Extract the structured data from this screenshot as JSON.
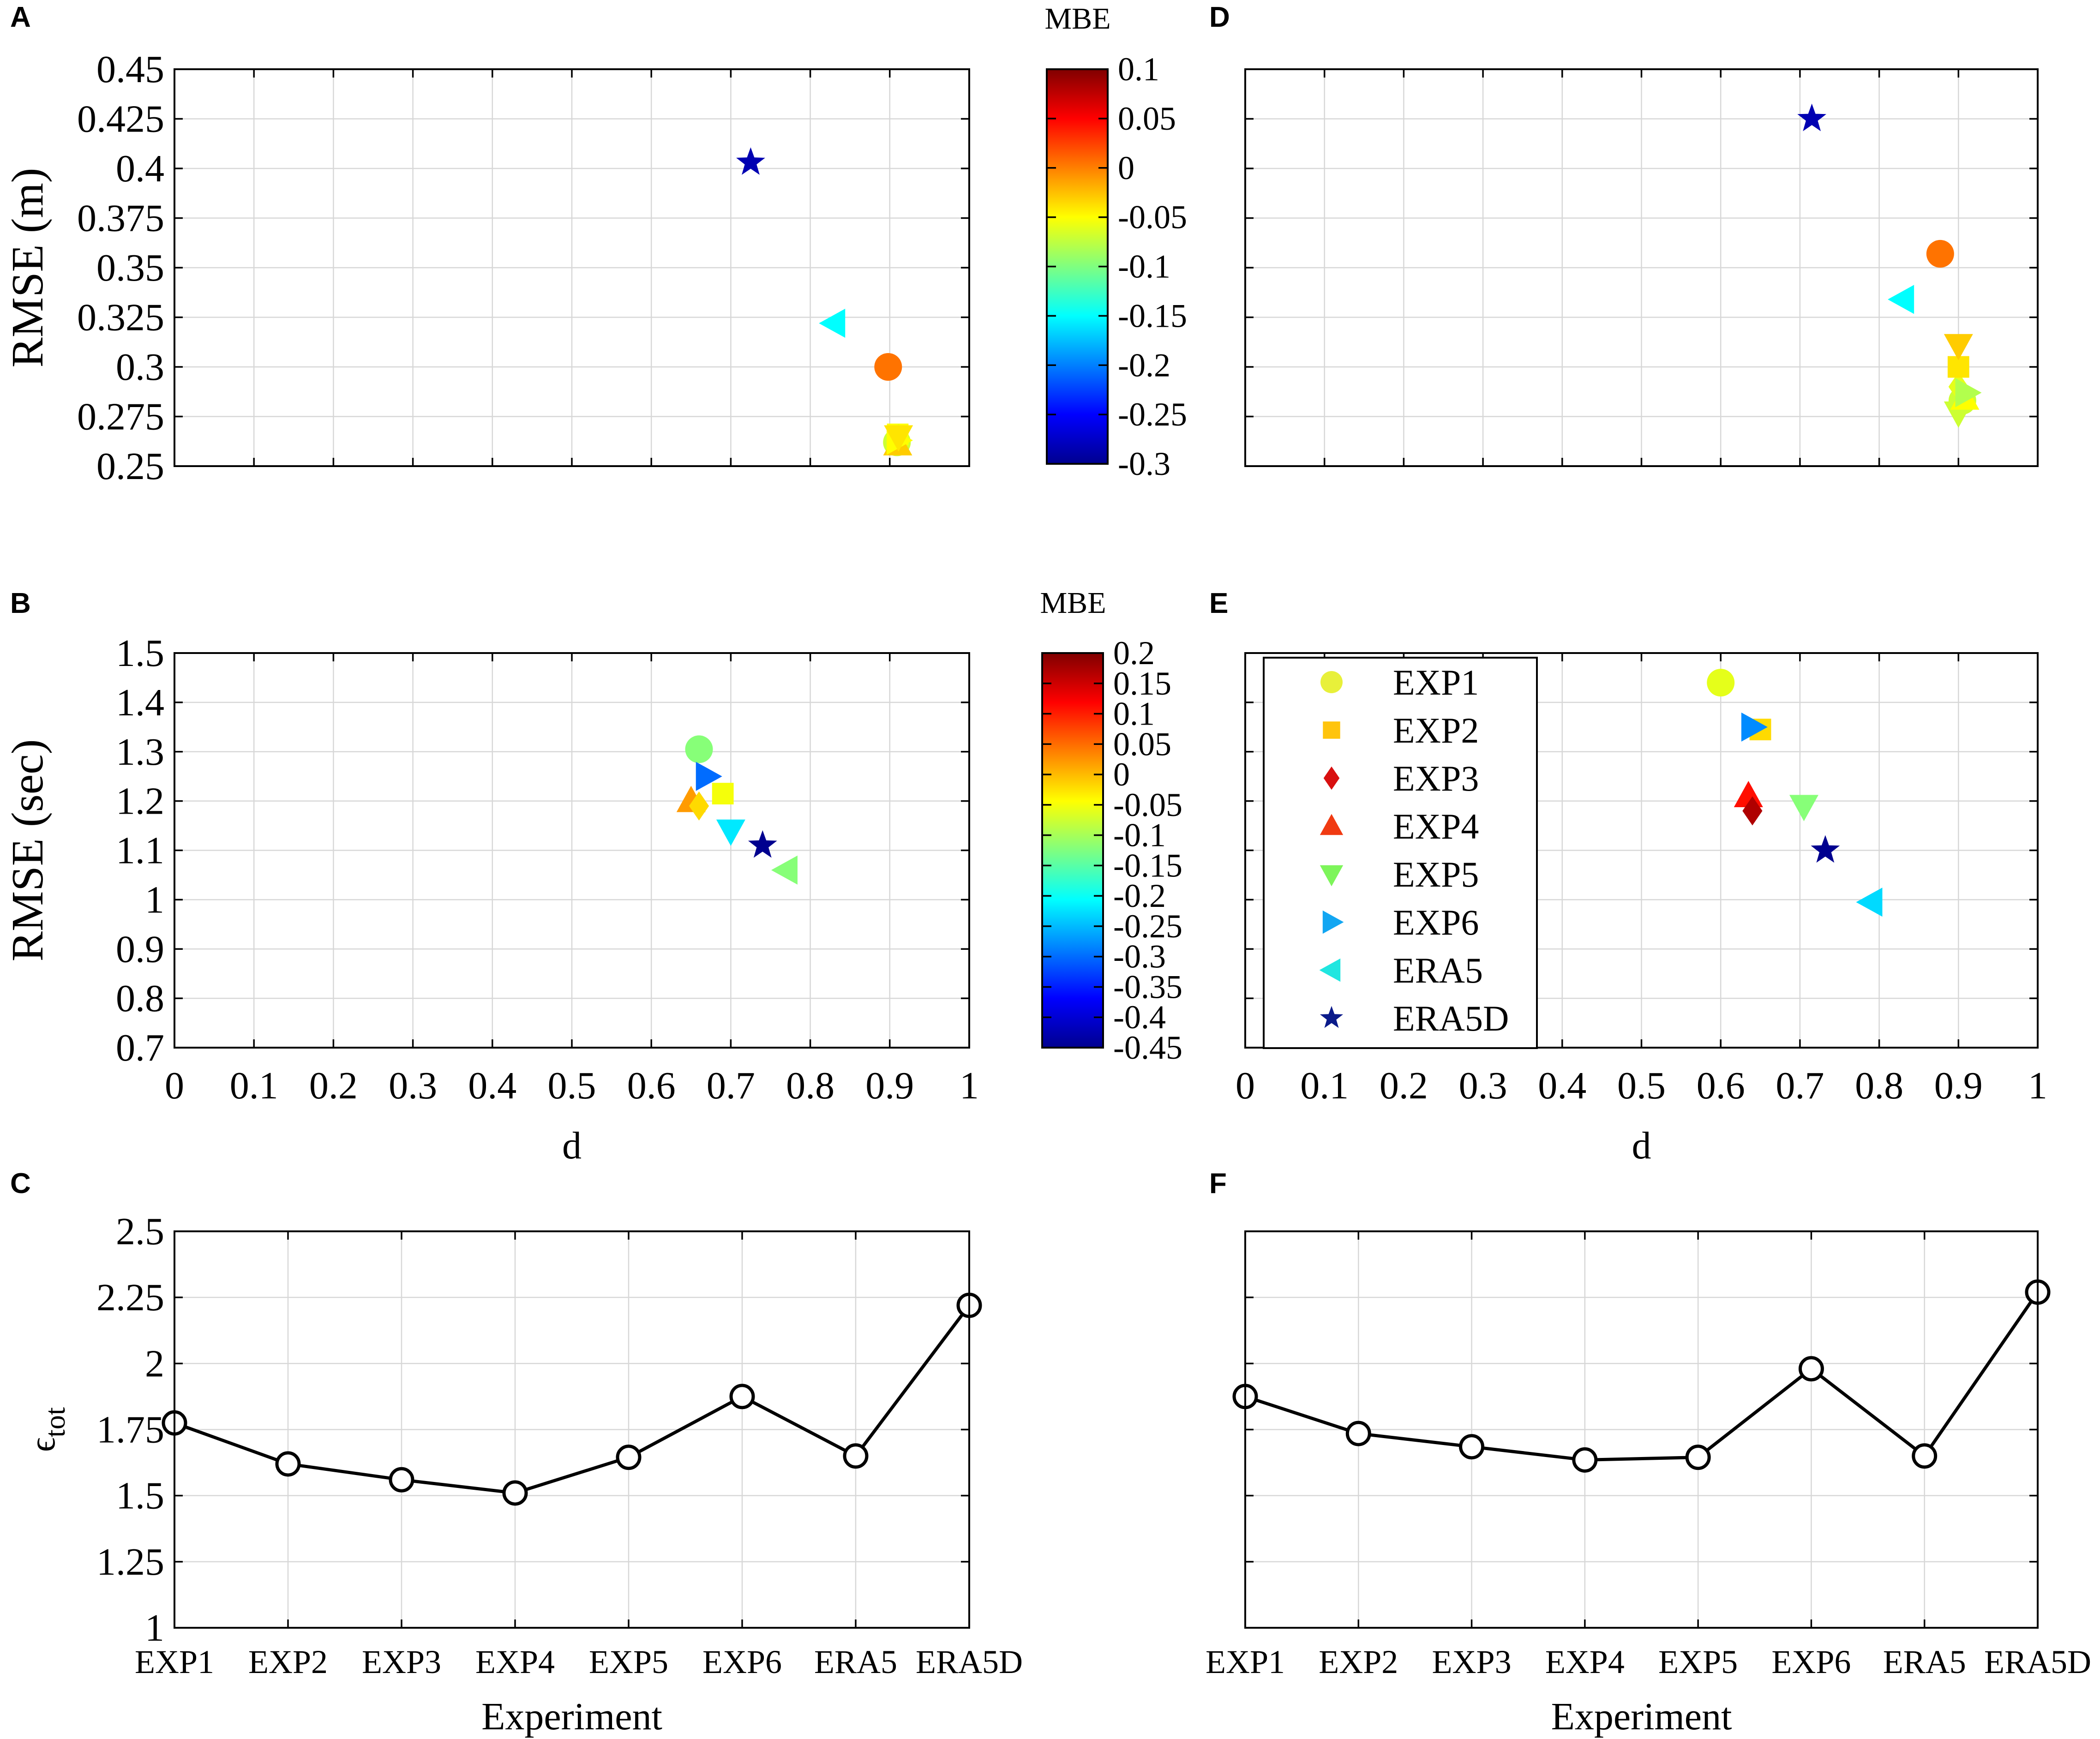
{
  "colors": {
    "axis": "#000000",
    "grid": "#d7d7d7",
    "background": "#ffffff"
  },
  "legend": {
    "entries": [
      {
        "label": "EXP1",
        "marker": "circle"
      },
      {
        "label": "EXP2",
        "marker": "square"
      },
      {
        "label": "EXP3",
        "marker": "diamond"
      },
      {
        "label": "EXP4",
        "marker": "triangle-up"
      },
      {
        "label": "EXP5",
        "marker": "triangle-down"
      },
      {
        "label": "EXP6",
        "marker": "triangle-right"
      },
      {
        "label": "ERA5",
        "marker": "triangle-left"
      },
      {
        "label": "ERA5D",
        "marker": "star"
      }
    ]
  },
  "chart_data": [
    {
      "id": "A",
      "type": "scatter",
      "panel_label": "A",
      "xlabel": "",
      "ylabel": "RMSE (m)",
      "xlim": [
        0,
        1
      ],
      "ylim": [
        0.25,
        0.45
      ],
      "xticks": [
        0,
        0.1,
        0.2,
        0.3,
        0.4,
        0.5,
        0.6,
        0.7,
        0.8,
        0.9,
        1
      ],
      "show_xtick_labels": false,
      "yticks": [
        0.25,
        0.275,
        0.3,
        0.325,
        0.35,
        0.375,
        0.4,
        0.425,
        0.45
      ],
      "ytick_labels": [
        "0.25",
        "0.275",
        "0.3",
        "0.325",
        "0.35",
        "0.375",
        "0.4",
        "0.425",
        "0.45"
      ],
      "grid": true,
      "colorbar": {
        "label": "MBE",
        "range": [
          -0.3,
          0.1
        ],
        "ticks": [
          -0.3,
          -0.25,
          -0.2,
          -0.15,
          -0.1,
          -0.05,
          0,
          0.05,
          0.1
        ],
        "tick_labels": [
          "-0.3",
          "-0.25",
          "-0.2",
          "-0.15",
          "-0.1",
          "-0.05",
          "0",
          "0.05",
          "0.1"
        ]
      },
      "points": [
        {
          "name": "EXP1",
          "marker": "circle",
          "d": 0.909,
          "rmse": 0.262,
          "mbe": -0.07
        },
        {
          "name": "EXP2",
          "marker": "square",
          "d": 0.91,
          "rmse": 0.266,
          "mbe": -0.05
        },
        {
          "name": "EXP3",
          "marker": "diamond",
          "d": 0.911,
          "rmse": 0.264,
          "mbe": -0.06
        },
        {
          "name": "EXP4",
          "marker": "triangle-up",
          "d": 0.91,
          "rmse": 0.261,
          "mbe": -0.03
        },
        {
          "name": "EXP6",
          "marker": "triangle-right",
          "d": 0.91,
          "rmse": 0.263,
          "mbe": -0.05
        },
        {
          "name": "EXP5",
          "marker": "triangle-down",
          "d": 0.911,
          "rmse": 0.265,
          "mbe": -0.04
        },
        {
          "name": "ERA5",
          "marker": "triangle-left",
          "d": 0.83,
          "rmse": 0.322,
          "mbe": -0.15
        },
        {
          "name": "EXP1",
          "marker": "circle",
          "d": 0.898,
          "rmse": 0.3,
          "mbe": 0.005
        },
        {
          "name": "ERA5D",
          "marker": "star",
          "d": 0.725,
          "rmse": 0.403,
          "mbe": -0.28
        }
      ]
    },
    {
      "id": "B",
      "type": "scatter",
      "panel_label": "B",
      "xlabel": "d",
      "ylabel": "RMSE (sec)",
      "xlim": [
        0,
        1
      ],
      "ylim": [
        0.7,
        1.5
      ],
      "xticks": [
        0,
        0.1,
        0.2,
        0.3,
        0.4,
        0.5,
        0.6,
        0.7,
        0.8,
        0.9,
        1
      ],
      "xtick_labels": [
        "0",
        "0.1",
        "0.2",
        "0.3",
        "0.4",
        "0.5",
        "0.6",
        "0.7",
        "0.8",
        "0.9",
        "1"
      ],
      "show_xtick_labels": true,
      "yticks": [
        0.7,
        0.8,
        0.9,
        1,
        1.1,
        1.2,
        1.3,
        1.4,
        1.5
      ],
      "ytick_labels": [
        "0.7",
        "0.8",
        "0.9",
        "1",
        "1.1",
        "1.2",
        "1.3",
        "1.4",
        "1.5"
      ],
      "grid": true,
      "colorbar": {
        "label": "MBE",
        "range": [
          -0.45,
          0.2
        ],
        "ticks": [
          -0.45,
          -0.4,
          -0.35,
          -0.3,
          -0.25,
          -0.2,
          -0.15,
          -0.1,
          -0.05,
          0,
          0.05,
          0.1,
          0.15,
          0.2
        ],
        "tick_labels": [
          "-0.45",
          "-0.4",
          "-0.35",
          "-0.3",
          "-0.25",
          "-0.2",
          "-0.15",
          "-0.1",
          "-0.05",
          "0",
          "0.05",
          "0.1",
          "0.15",
          "0.2"
        ]
      },
      "points": [
        {
          "name": "EXP1",
          "marker": "circle",
          "d": 0.66,
          "rmse": 1.305,
          "mbe": -0.12
        },
        {
          "name": "EXP6",
          "marker": "triangle-right",
          "d": 0.67,
          "rmse": 1.25,
          "mbe": -0.3
        },
        {
          "name": "EXP2",
          "marker": "square",
          "d": 0.69,
          "rmse": 1.215,
          "mbe": -0.05
        },
        {
          "name": "EXP4",
          "marker": "triangle-up",
          "d": 0.65,
          "rmse": 1.2,
          "mbe": 0.02
        },
        {
          "name": "EXP3",
          "marker": "diamond",
          "d": 0.66,
          "rmse": 1.19,
          "mbe": -0.02
        },
        {
          "name": "EXP5",
          "marker": "triangle-down",
          "d": 0.7,
          "rmse": 1.14,
          "mbe": -0.22
        },
        {
          "name": "ERA5D",
          "marker": "star",
          "d": 0.74,
          "rmse": 1.11,
          "mbe": -0.44
        },
        {
          "name": "ERA5",
          "marker": "triangle-left",
          "d": 0.77,
          "rmse": 1.06,
          "mbe": -0.12
        }
      ]
    },
    {
      "id": "C",
      "type": "line",
      "panel_label": "C",
      "xlabel": "Experiment",
      "ylabel": "ϵ",
      "ylabel_subscript": "tot",
      "categories": [
        "EXP1",
        "EXP2",
        "EXP3",
        "EXP4",
        "EXP5",
        "EXP6",
        "ERA5",
        "ERA5D"
      ],
      "values": [
        1.775,
        1.62,
        1.56,
        1.51,
        1.645,
        1.875,
        1.65,
        2.22
      ],
      "ylim": [
        1,
        2.5
      ],
      "yticks": [
        1,
        1.25,
        1.5,
        1.75,
        2,
        2.25,
        2.5
      ],
      "ytick_labels": [
        "1",
        "1.25",
        "1.5",
        "1.75",
        "2",
        "2.25",
        "2.5"
      ],
      "show_ytick_labels": true,
      "grid": true
    },
    {
      "id": "D",
      "type": "scatter",
      "panel_label": "D",
      "xlabel": "",
      "ylabel": "",
      "xlim": [
        0,
        1
      ],
      "ylim": [
        0.25,
        0.45
      ],
      "xticks": [
        0,
        0.1,
        0.2,
        0.3,
        0.4,
        0.5,
        0.6,
        0.7,
        0.8,
        0.9,
        1
      ],
      "show_xtick_labels": false,
      "yticks": [
        0.25,
        0.275,
        0.3,
        0.325,
        0.35,
        0.375,
        0.4,
        0.425,
        0.45
      ],
      "show_ytick_labels": false,
      "grid": true,
      "points": [
        {
          "name": "EXP1",
          "marker": "circle",
          "d": 0.905,
          "rmse": 0.283,
          "mbe": -0.07
        },
        {
          "name": "EXP3",
          "marker": "diamond",
          "d": 0.9,
          "rmse": 0.29,
          "mbe": -0.06
        },
        {
          "name": "EXP5",
          "marker": "triangle-down",
          "d": 0.9,
          "rmse": 0.277,
          "mbe": -0.07
        },
        {
          "name": "EXP4",
          "marker": "triangle-up",
          "d": 0.908,
          "rmse": 0.284,
          "mbe": -0.05
        },
        {
          "name": "EXP6",
          "marker": "triangle-right",
          "d": 0.91,
          "rmse": 0.287,
          "mbe": -0.08
        },
        {
          "name": "EXP2",
          "marker": "square",
          "d": 0.9,
          "rmse": 0.3,
          "mbe": -0.04
        },
        {
          "name": "EXP5",
          "marker": "triangle-down",
          "d": 0.9,
          "rmse": 0.311,
          "mbe": -0.03
        },
        {
          "name": "ERA5",
          "marker": "triangle-left",
          "d": 0.83,
          "rmse": 0.334,
          "mbe": -0.15
        },
        {
          "name": "EXP1",
          "marker": "circle",
          "d": 0.877,
          "rmse": 0.357,
          "mbe": 0.005
        },
        {
          "name": "ERA5D",
          "marker": "star",
          "d": 0.715,
          "rmse": 0.425,
          "mbe": -0.28
        }
      ]
    },
    {
      "id": "E",
      "type": "scatter",
      "panel_label": "E",
      "xlabel": "d",
      "ylabel": "",
      "xlim": [
        0,
        1
      ],
      "ylim": [
        0.7,
        1.5
      ],
      "xticks": [
        0,
        0.1,
        0.2,
        0.3,
        0.4,
        0.5,
        0.6,
        0.7,
        0.8,
        0.9,
        1
      ],
      "xtick_labels": [
        "0",
        "0.1",
        "0.2",
        "0.3",
        "0.4",
        "0.5",
        "0.6",
        "0.7",
        "0.8",
        "0.9",
        "1"
      ],
      "show_xtick_labels": true,
      "yticks": [
        0.7,
        0.8,
        0.9,
        1,
        1.1,
        1.2,
        1.3,
        1.4,
        1.5
      ],
      "show_ytick_labels": false,
      "grid": true,
      "points": [
        {
          "name": "EXP1",
          "marker": "circle",
          "d": 0.6,
          "rmse": 1.44,
          "mbe": -0.06
        },
        {
          "name": "EXP2",
          "marker": "square",
          "d": 0.65,
          "rmse": 1.345,
          "mbe": -0.02
        },
        {
          "name": "EXP6",
          "marker": "triangle-right",
          "d": 0.64,
          "rmse": 1.35,
          "mbe": -0.28
        },
        {
          "name": "EXP4",
          "marker": "triangle-up",
          "d": 0.635,
          "rmse": 1.21,
          "mbe": 0.11
        },
        {
          "name": "EXP3",
          "marker": "diamond",
          "d": 0.64,
          "rmse": 1.18,
          "mbe": 0.17
        },
        {
          "name": "EXP5",
          "marker": "triangle-down",
          "d": 0.705,
          "rmse": 1.19,
          "mbe": -0.12
        },
        {
          "name": "ERA5D",
          "marker": "star",
          "d": 0.732,
          "rmse": 1.1,
          "mbe": -0.44
        },
        {
          "name": "ERA5",
          "marker": "triangle-left",
          "d": 0.79,
          "rmse": 0.995,
          "mbe": -0.23
        }
      ]
    },
    {
      "id": "F",
      "type": "line",
      "panel_label": "F",
      "xlabel": "Experiment",
      "ylabel": "",
      "categories": [
        "EXP1",
        "EXP2",
        "EXP3",
        "EXP4",
        "EXP5",
        "EXP6",
        "ERA5",
        "ERA5D"
      ],
      "values": [
        1.875,
        1.735,
        1.685,
        1.635,
        1.645,
        1.98,
        1.65,
        2.27
      ],
      "ylim": [
        1,
        2.5
      ],
      "yticks": [
        1,
        1.25,
        1.5,
        1.75,
        2,
        2.25,
        2.5
      ],
      "show_ytick_labels": false,
      "grid": true
    }
  ]
}
